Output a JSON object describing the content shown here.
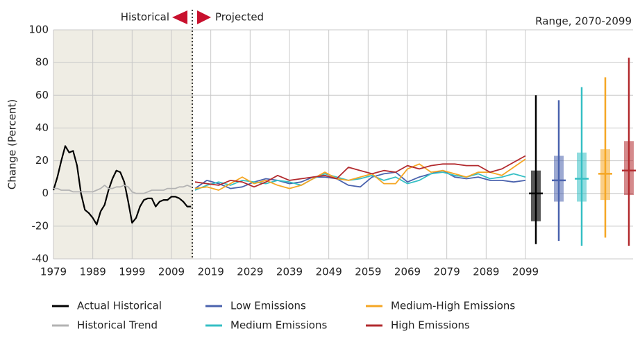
{
  "chart_data": {
    "type": "line",
    "y_label": "Change (Percent)",
    "left_label": "Historical",
    "right_label": "Projected",
    "range_label": "Range, 2070-2099",
    "xlim": [
      1979,
      2099
    ],
    "xticks": [
      1979,
      1989,
      1999,
      2009,
      2019,
      2029,
      2039,
      2049,
      2059,
      2069,
      2079,
      2089,
      2099
    ],
    "ylim": [
      -40,
      100
    ],
    "yticks": [
      -40,
      -20,
      0,
      20,
      40,
      60,
      80,
      100
    ],
    "grid": true,
    "series": [
      {
        "name": "Actual Historical",
        "color": "#000000",
        "x": [
          1979,
          1980,
          1981,
          1982,
          1983,
          1984,
          1985,
          1986,
          1987,
          1988,
          1989,
          1990,
          1991,
          1992,
          1993,
          1994,
          1995,
          1996,
          1997,
          1998,
          1999,
          2000,
          2001,
          2002,
          2003,
          2004,
          2005,
          2006,
          2007,
          2008,
          2009,
          2010,
          2011,
          2012,
          2013,
          2014
        ],
        "values": [
          2,
          10,
          20,
          29,
          25,
          26,
          17,
          0,
          -10,
          -12,
          -15,
          -19,
          -11,
          -7,
          2,
          9,
          14,
          13,
          7,
          -5,
          -18,
          -15,
          -8,
          -4,
          -3,
          -3,
          -8,
          -5,
          -4,
          -4,
          -2,
          -2,
          -3,
          -5,
          -8,
          -8
        ],
        "range": {
          "min": -31,
          "q1": -17,
          "median": 0,
          "q3": 14,
          "max": 60
        }
      },
      {
        "name": "Historical Trend",
        "color": "#b3b3b3",
        "x": [
          1979,
          1980,
          1981,
          1982,
          1983,
          1984,
          1985,
          1986,
          1987,
          1988,
          1989,
          1990,
          1991,
          1992,
          1993,
          1994,
          1995,
          1996,
          1997,
          1998,
          1999,
          2000,
          2001,
          2002,
          2003,
          2004,
          2005,
          2006,
          2007,
          2008,
          2009,
          2010,
          2011,
          2012,
          2013,
          2014
        ],
        "values": [
          3,
          3,
          2,
          2,
          2,
          1,
          1,
          1,
          1,
          1,
          1,
          2,
          3,
          5,
          3,
          3,
          4,
          4,
          5,
          4,
          1,
          0,
          0,
          0,
          1,
          2,
          2,
          2,
          2,
          3,
          3,
          3,
          4,
          4,
          5,
          4
        ]
      },
      {
        "name": "Low Emissions",
        "color": "#4a62ad",
        "x": [
          2015,
          2018,
          2021,
          2024,
          2027,
          2030,
          2033,
          2036,
          2039,
          2042,
          2045,
          2048,
          2051,
          2054,
          2057,
          2060,
          2063,
          2066,
          2069,
          2072,
          2075,
          2078,
          2081,
          2084,
          2087,
          2090,
          2093,
          2096,
          2099
        ],
        "values": [
          3,
          8,
          6,
          3,
          4,
          7,
          9,
          8,
          6,
          7,
          10,
          10,
          9,
          5,
          4,
          10,
          12,
          13,
          7,
          10,
          12,
          14,
          10,
          9,
          10,
          8,
          8,
          7,
          8
        ],
        "range": {
          "min": -29,
          "q1": -5,
          "median": 8,
          "q3": 23,
          "max": 57
        }
      },
      {
        "name": "Medium Emissions",
        "color": "#35bfc4",
        "x": [
          2015,
          2018,
          2021,
          2024,
          2027,
          2030,
          2033,
          2036,
          2039,
          2042,
          2045,
          2048,
          2051,
          2054,
          2057,
          2060,
          2063,
          2066,
          2069,
          2072,
          2075,
          2078,
          2081,
          2084,
          2087,
          2090,
          2093,
          2096,
          2099
        ],
        "values": [
          2,
          5,
          7,
          5,
          8,
          7,
          6,
          8,
          7,
          5,
          9,
          12,
          10,
          8,
          9,
          11,
          8,
          10,
          6,
          8,
          12,
          13,
          11,
          10,
          12,
          9,
          10,
          12,
          10
        ],
        "range": {
          "min": -32,
          "q1": -5,
          "median": 9,
          "q3": 25,
          "max": 65
        }
      },
      {
        "name": "Medium-High Emissions",
        "color": "#f5a623",
        "x": [
          2015,
          2018,
          2021,
          2024,
          2027,
          2030,
          2033,
          2036,
          2039,
          2042,
          2045,
          2048,
          2051,
          2054,
          2057,
          2060,
          2063,
          2066,
          2069,
          2072,
          2075,
          2078,
          2081,
          2084,
          2087,
          2090,
          2093,
          2096,
          2099
        ],
        "values": [
          3,
          4,
          2,
          6,
          10,
          6,
          8,
          5,
          3,
          5,
          9,
          13,
          9,
          8,
          10,
          12,
          6,
          6,
          15,
          18,
          13,
          14,
          12,
          10,
          13,
          13,
          11,
          16,
          21
        ],
        "range": {
          "min": -27,
          "q1": -4,
          "median": 12,
          "q3": 27,
          "max": 71
        }
      },
      {
        "name": "High Emissions",
        "color": "#b22a2e",
        "x": [
          2015,
          2018,
          2021,
          2024,
          2027,
          2030,
          2033,
          2036,
          2039,
          2042,
          2045,
          2048,
          2051,
          2054,
          2057,
          2060,
          2063,
          2066,
          2069,
          2072,
          2075,
          2078,
          2081,
          2084,
          2087,
          2090,
          2093,
          2096,
          2099
        ],
        "values": [
          7,
          6,
          5,
          8,
          7,
          4,
          7,
          11,
          8,
          9,
          10,
          11,
          9,
          16,
          14,
          12,
          14,
          13,
          17,
          15,
          17,
          18,
          18,
          17,
          17,
          13,
          15,
          19,
          23
        ],
        "range": {
          "min": -32,
          "q1": -1,
          "median": 14,
          "q3": 32,
          "max": 83
        }
      }
    ]
  }
}
